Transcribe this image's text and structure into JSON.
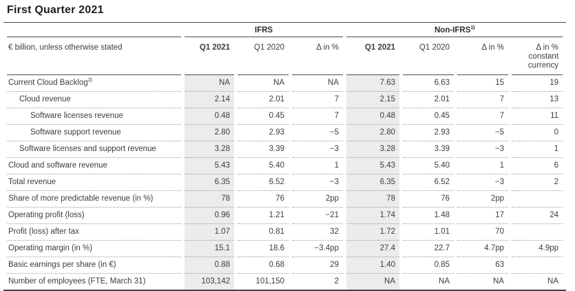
{
  "page_title": "First Quarter 2021",
  "colors": {
    "shaded_column": "#ececec",
    "solid_rule": "#4c4c4c",
    "dotted_rule": "#9a9a9a",
    "text": "#3c3c3c",
    "muted_text": "#6e6e6e"
  },
  "table": {
    "unit_label": "€ billion, unless otherwise stated",
    "group_headers": [
      {
        "label": "IFRS",
        "sup": ""
      },
      {
        "label": "Non-IFRS",
        "sup": "1)"
      }
    ],
    "column_headers": [
      {
        "label": "Q1 2021"
      },
      {
        "label": "Q1 2020"
      },
      {
        "label": "Δ in %"
      },
      {
        "label": "Q1 2021"
      },
      {
        "label": "Q1 2020"
      },
      {
        "label": "Δ in %"
      },
      {
        "label": "Δ in %\nconstant\ncurrency"
      }
    ],
    "rows": [
      {
        "label": "Current Cloud Backlog",
        "sup": "2)",
        "indent": 0,
        "values": [
          "NA",
          "NA",
          "NA",
          "7.63",
          "6.63",
          "15",
          "19"
        ]
      },
      {
        "label": "Cloud revenue",
        "sup": "",
        "indent": 1,
        "values": [
          "2.14",
          "2.01",
          "7",
          "2.15",
          "2.01",
          "7",
          "13"
        ]
      },
      {
        "label": "Software licenses revenue",
        "sup": "",
        "indent": 2,
        "values": [
          "0.48",
          "0.45",
          "7",
          "0.48",
          "0.45",
          "7",
          "11"
        ]
      },
      {
        "label": "Software support revenue",
        "sup": "",
        "indent": 2,
        "values": [
          "2.80",
          "2.93",
          "−5",
          "2.80",
          "2.93",
          "−5",
          "0"
        ]
      },
      {
        "label": "Software licenses and support revenue",
        "sup": "",
        "indent": 1,
        "values": [
          "3.28",
          "3.39",
          "−3",
          "3.28",
          "3.39",
          "−3",
          "1"
        ]
      },
      {
        "label": "Cloud and software revenue",
        "sup": "",
        "indent": 0,
        "values": [
          "5.43",
          "5.40",
          "1",
          "5.43",
          "5.40",
          "1",
          "6"
        ]
      },
      {
        "label": "Total revenue",
        "sup": "",
        "indent": 0,
        "values": [
          "6.35",
          "6.52",
          "−3",
          "6.35",
          "6.52",
          "−3",
          "2"
        ]
      },
      {
        "label": "Share of more predictable revenue (in %)",
        "sup": "",
        "indent": 0,
        "values": [
          "78",
          "76",
          "2pp",
          "78",
          "76",
          "2pp",
          ""
        ]
      },
      {
        "label": "Operating profit (loss)",
        "sup": "",
        "indent": 0,
        "values": [
          "0.96",
          "1.21",
          "−21",
          "1.74",
          "1.48",
          "17",
          "24"
        ]
      },
      {
        "label": "Profit (loss) after tax",
        "sup": "",
        "indent": 0,
        "values": [
          "1.07",
          "0.81",
          "32",
          "1.72",
          "1.01",
          "70",
          ""
        ]
      },
      {
        "label": "Operating margin (in %)",
        "sup": "",
        "indent": 0,
        "values": [
          "15.1",
          "18.6",
          "−3.4pp",
          "27.4",
          "22.7",
          "4.7pp",
          "4.9pp"
        ]
      },
      {
        "label": "Basic earnings per share (in €)",
        "sup": "",
        "indent": 0,
        "values": [
          "0.88",
          "0.68",
          "29",
          "1.40",
          "0.85",
          "63",
          ""
        ]
      },
      {
        "label": "Number of employees (FTE, March 31)",
        "sup": "",
        "indent": 0,
        "values": [
          "103,142",
          "101,150",
          "2",
          "NA",
          "NA",
          "NA",
          "NA"
        ]
      }
    ]
  }
}
